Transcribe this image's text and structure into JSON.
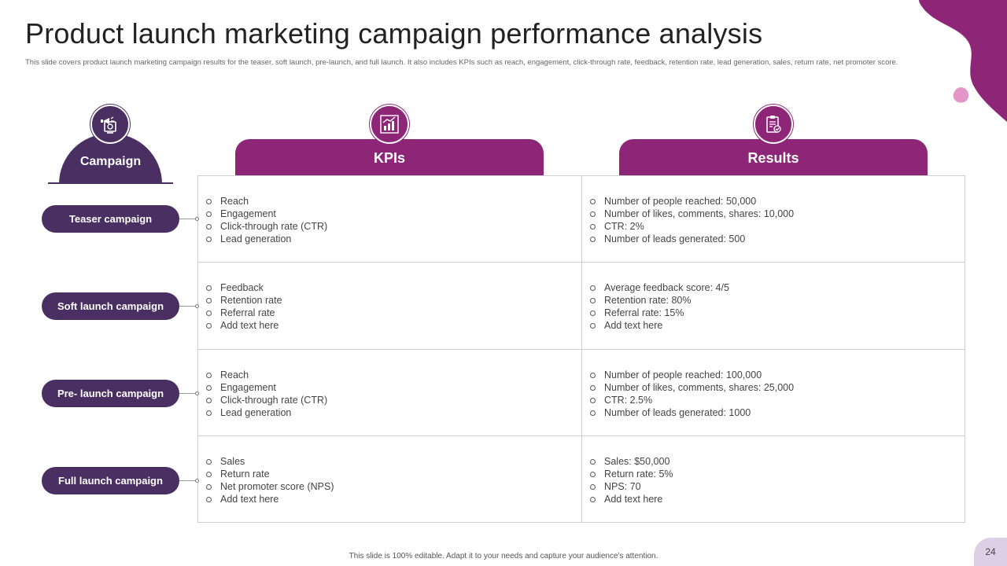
{
  "header": {
    "title": "Product launch marketing campaign performance analysis",
    "subtitle": "This slide covers product launch marketing campaign results for the teaser, soft launch, pre-launch, and full launch. It also includes KPIs such as reach, engagement, click-through rate, feedback, retention rate, lead generation, sales, return rate, net promoter score."
  },
  "columns": {
    "campaign": "Campaign",
    "kpis": "KPIs",
    "results": "Results"
  },
  "icons": {
    "campaign": "megaphone-icon",
    "kpis": "bar-chart-icon",
    "results": "clipboard-check-icon"
  },
  "colors": {
    "dark_purple": "#4a2f63",
    "magenta": "#8e2678",
    "light_pink": "#e596c9"
  },
  "rows": [
    {
      "campaign": "Teaser campaign",
      "kpis": [
        "Reach",
        "Engagement",
        "Click-through rate (CTR)",
        "Lead generation"
      ],
      "results": [
        "Number of people reached: 50,000",
        "Number of likes, comments, shares: 10,000",
        "CTR: 2%",
        "Number of leads generated: 500"
      ]
    },
    {
      "campaign": "Soft launch campaign",
      "kpis": [
        "Feedback",
        "Retention rate",
        "Referral rate",
        "Add text here"
      ],
      "results": [
        "Average feedback score: 4/5",
        "Retention rate: 80%",
        "Referral rate: 15%",
        "Add text here"
      ]
    },
    {
      "campaign": "Pre- launch campaign",
      "kpis": [
        "Reach",
        "Engagement",
        "Click-through rate (CTR)",
        "Lead generation"
      ],
      "results": [
        "Number of people reached: 100,000",
        "Number of likes, comments, shares: 25,000",
        "CTR: 2.5%",
        "Number of leads generated: 1000"
      ]
    },
    {
      "campaign": "Full launch campaign",
      "kpis": [
        "Sales",
        "Return rate",
        "Net promoter score (NPS)",
        "Add text here"
      ],
      "results": [
        "Sales: $50,000",
        "Return rate: 5%",
        "NPS: 70",
        "Add text here"
      ]
    }
  ],
  "footer": {
    "note": "This slide is 100% editable. Adapt it to your needs and capture your audience's attention.",
    "page_number": "24"
  }
}
